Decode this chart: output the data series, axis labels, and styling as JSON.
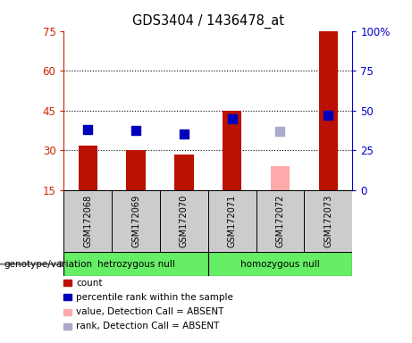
{
  "title": "GDS3404 / 1436478_at",
  "samples": [
    "GSM172068",
    "GSM172069",
    "GSM172070",
    "GSM172071",
    "GSM172072",
    "GSM172073"
  ],
  "groups": [
    {
      "label": "hetrozygous null",
      "color": "#66EE66",
      "indices": [
        0,
        1,
        2
      ]
    },
    {
      "label": "homozygous null",
      "color": "#66EE66",
      "indices": [
        3,
        4,
        5
      ]
    }
  ],
  "count_values": [
    32,
    30,
    28.5,
    45,
    null,
    75
  ],
  "count_absent": [
    null,
    null,
    null,
    null,
    24,
    null
  ],
  "percentile_values": [
    38,
    37.5,
    35.5,
    45,
    null,
    47
  ],
  "percentile_absent": [
    null,
    null,
    null,
    null,
    37,
    null
  ],
  "ylim_left": [
    15,
    75
  ],
  "ylim_right": [
    0,
    100
  ],
  "yticks_left": [
    15,
    30,
    45,
    60,
    75
  ],
  "yticks_right": [
    0,
    25,
    50,
    75,
    100
  ],
  "ytick_labels_left": [
    "15",
    "30",
    "45",
    "60",
    "75"
  ],
  "ytick_labels_right": [
    "0",
    "25",
    "50",
    "75",
    "100%"
  ],
  "hlines": [
    30,
    45,
    60
  ],
  "bar_color": "#BB1100",
  "bar_absent_color": "#FFAAAA",
  "dot_color": "#0000BB",
  "dot_absent_color": "#AAAACC",
  "left_axis_color": "#CC2200",
  "right_axis_color": "#0000CC",
  "legend": [
    {
      "label": "count",
      "color": "#BB1100"
    },
    {
      "label": "percentile rank within the sample",
      "color": "#0000BB"
    },
    {
      "label": "value, Detection Call = ABSENT",
      "color": "#FFAAAA"
    },
    {
      "label": "rank, Detection Call = ABSENT",
      "color": "#AAAACC"
    }
  ],
  "genotype_label": "genotype/variation",
  "sample_box_color": "#CCCCCC",
  "plot_bg_color": "#ffffff"
}
